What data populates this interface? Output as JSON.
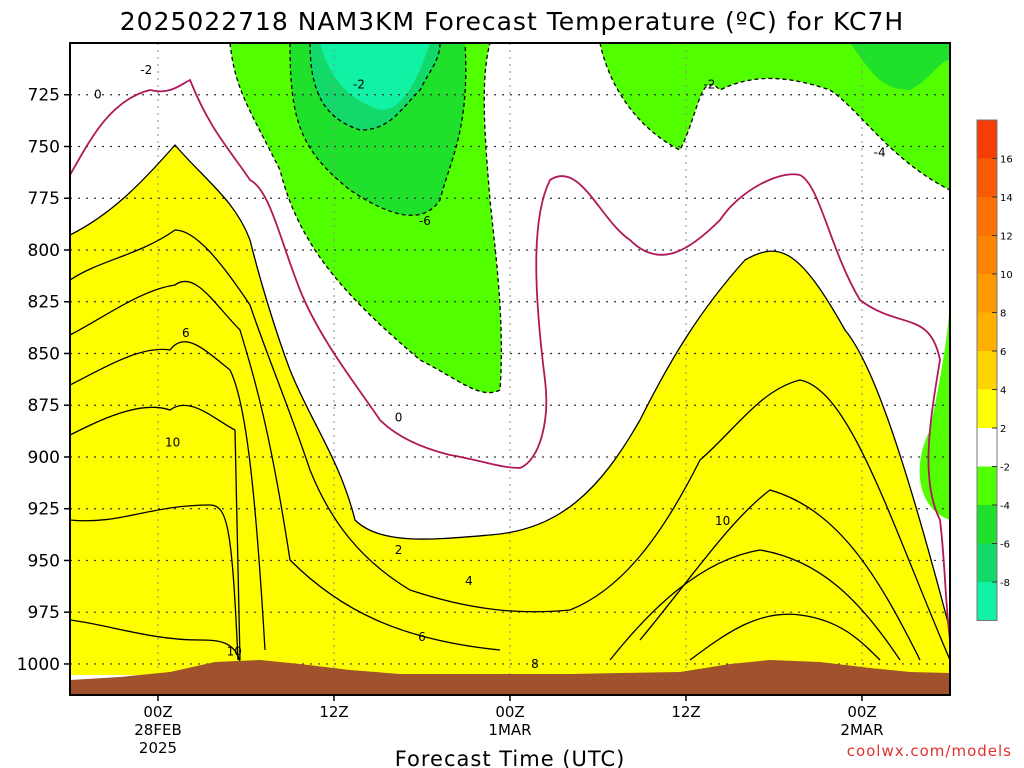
{
  "chart_data": {
    "type": "contour",
    "title": "2025022718 NAM3KM Forecast Temperature (ºC) for KC7H",
    "xlabel": "Forecast Time (UTC)",
    "ylabel": "",
    "y_ticks": [
      "725",
      "750",
      "775",
      "800",
      "825",
      "850",
      "875",
      "900",
      "925",
      "950",
      "975",
      "1000"
    ],
    "x_ticks": [
      {
        "line1": "00Z",
        "line2": "28FEB",
        "line3": "2025"
      },
      {
        "line1": "12Z",
        "line2": "",
        "line3": ""
      },
      {
        "line1": "00Z",
        "line2": "1MAR",
        "line3": ""
      },
      {
        "line1": "12Z",
        "line2": "",
        "line3": ""
      },
      {
        "line1": "00Z",
        "line2": "2MAR",
        "line3": ""
      }
    ],
    "x_range_hours": [
      -6,
      54
    ],
    "y_range_hpa": [
      700,
      1015
    ],
    "colorbar": {
      "labels": [
        "16",
        "14",
        "12",
        "10",
        "8",
        "6",
        "4",
        "2",
        "-2",
        "-4",
        "-6",
        "-8"
      ],
      "colors": [
        "#f63d06",
        "#fa5a00",
        "#fc7100",
        "#fd8400",
        "#fe9a00",
        "#fdb000",
        "#fdd400",
        "#fefe00",
        "#ffffff",
        "#52ff00",
        "#1fe02a",
        "#13d96a",
        "#11f2a4"
      ]
    },
    "contour_labels": [
      {
        "t": "0",
        "x": -4.1,
        "p": 725
      },
      {
        "t": "-2",
        "x": -0.8,
        "p": 713
      },
      {
        "t": "-2",
        "x": 13.7,
        "p": 720
      },
      {
        "t": "-6",
        "x": 18.2,
        "p": 786
      },
      {
        "t": "6",
        "x": 1.9,
        "p": 840
      },
      {
        "t": "10",
        "x": 1.0,
        "p": 893
      },
      {
        "t": "0",
        "x": 16.4,
        "p": 881
      },
      {
        "t": "2",
        "x": 16.4,
        "p": 945
      },
      {
        "t": "4",
        "x": 21.2,
        "p": 960
      },
      {
        "t": "6",
        "x": 18.0,
        "p": 987
      },
      {
        "t": "10",
        "x": 5.2,
        "p": 994
      },
      {
        "t": "8",
        "x": 25.7,
        "p": 1000
      },
      {
        "t": "10",
        "x": 38.5,
        "p": 931
      },
      {
        "t": "-2",
        "x": 37.6,
        "p": 720
      },
      {
        "t": "-4",
        "x": 49.2,
        "p": 753
      }
    ],
    "fill_bands": [
      {
        "name": "freezing-air-mass-right",
        "color": "#52ff00"
      },
      {
        "name": "cold-core-center",
        "color": "#1fe02a"
      },
      {
        "name": "warm-layer-left",
        "color": "#fdd400"
      },
      {
        "name": "warm-layer-right",
        "color": "#fdd400"
      }
    ],
    "terrain_color": "#a0522d",
    "grid": true
  },
  "credit": "coolwx.com/models"
}
